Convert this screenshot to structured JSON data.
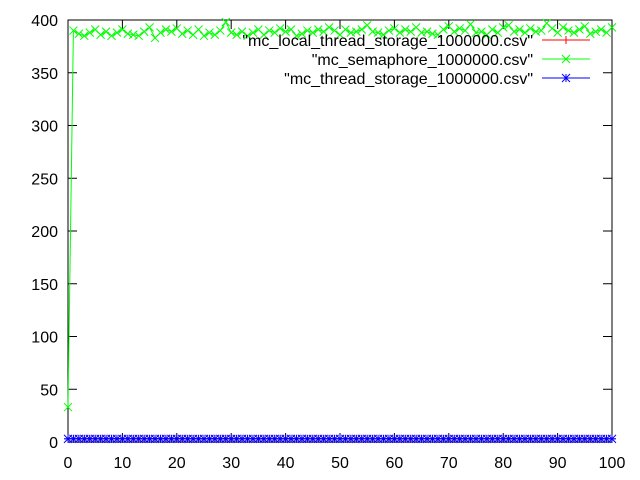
{
  "chart_data": {
    "type": "line",
    "title": "",
    "xlabel": "",
    "ylabel": "",
    "xlim": [
      0,
      100
    ],
    "ylim": [
      0,
      400
    ],
    "xticks": [
      0,
      10,
      20,
      30,
      40,
      50,
      60,
      70,
      80,
      90,
      100
    ],
    "yticks": [
      0,
      50,
      100,
      150,
      200,
      250,
      300,
      350,
      400
    ],
    "grid": false,
    "legend_position": "top-right",
    "series": [
      {
        "name": "\"mc_local_thread_storage_1000000.csv\"",
        "color": "#ff0000",
        "marker": "plus",
        "x": [
          0,
          1,
          2,
          3,
          4,
          5,
          6,
          7,
          8,
          9,
          10,
          11,
          12,
          13,
          14,
          15,
          16,
          17,
          18,
          19,
          20,
          21,
          22,
          23,
          24,
          25,
          26,
          27,
          28,
          29,
          30,
          31,
          32,
          33,
          34,
          35,
          36,
          37,
          38,
          39,
          40,
          41,
          42,
          43,
          44,
          45,
          46,
          47,
          48,
          49,
          50,
          51,
          52,
          53,
          54,
          55,
          56,
          57,
          58,
          59,
          60,
          61,
          62,
          63,
          64,
          65,
          66,
          67,
          68,
          69,
          70,
          71,
          72,
          73,
          74,
          75,
          76,
          77,
          78,
          79,
          80,
          81,
          82,
          83,
          84,
          85,
          86,
          87,
          88,
          89,
          90,
          91,
          92,
          93,
          94,
          95,
          96,
          97,
          98,
          99,
          100
        ],
        "y": [
          3,
          3,
          3,
          3,
          3,
          3,
          3,
          3,
          3,
          3,
          3,
          3,
          3,
          3,
          3,
          3,
          3,
          3,
          3,
          3,
          3,
          3,
          3,
          3,
          3,
          3,
          3,
          3,
          3,
          3,
          3,
          3,
          3,
          3,
          3,
          3,
          3,
          3,
          3,
          3,
          3,
          3,
          3,
          3,
          3,
          3,
          3,
          3,
          3,
          3,
          3,
          3,
          3,
          3,
          3,
          3,
          3,
          3,
          3,
          3,
          3,
          3,
          3,
          3,
          3,
          3,
          3,
          3,
          3,
          3,
          3,
          3,
          3,
          3,
          3,
          3,
          3,
          3,
          3,
          3,
          3,
          3,
          3,
          3,
          3,
          3,
          3,
          3,
          3,
          3,
          3,
          3,
          3,
          3,
          3,
          3,
          3,
          3,
          3,
          3,
          3
        ]
      },
      {
        "name": "\"mc_semaphore_1000000.csv\"",
        "color": "#00ff00",
        "marker": "cross",
        "x": [
          0,
          1,
          2,
          3,
          4,
          5,
          6,
          7,
          8,
          9,
          10,
          11,
          12,
          13,
          14,
          15,
          16,
          17,
          18,
          19,
          20,
          21,
          22,
          23,
          24,
          25,
          26,
          27,
          28,
          29,
          30,
          31,
          32,
          33,
          34,
          35,
          36,
          37,
          38,
          39,
          40,
          41,
          42,
          43,
          44,
          45,
          46,
          47,
          48,
          49,
          50,
          51,
          52,
          53,
          54,
          55,
          56,
          57,
          58,
          59,
          60,
          61,
          62,
          63,
          64,
          65,
          66,
          67,
          68,
          69,
          70,
          71,
          72,
          73,
          74,
          75,
          76,
          77,
          78,
          79,
          80,
          81,
          82,
          83,
          84,
          85,
          86,
          87,
          88,
          89,
          90,
          91,
          92,
          93,
          94,
          95,
          96,
          97,
          98,
          99,
          100
        ],
        "y": [
          33,
          390,
          387,
          385,
          388,
          391,
          386,
          389,
          385,
          388,
          391,
          387,
          386,
          385,
          389,
          393,
          383,
          388,
          391,
          389,
          392,
          387,
          390,
          386,
          391,
          385,
          388,
          386,
          390,
          398,
          388,
          386,
          389,
          385,
          388,
          391,
          386,
          390,
          388,
          392,
          389,
          391,
          385,
          387,
          390,
          388,
          391,
          389,
          393,
          390,
          386,
          391,
          388,
          389,
          391,
          395,
          389,
          388,
          386,
          390,
          392,
          388,
          391,
          389,
          393,
          388,
          389,
          387,
          386,
          391,
          394,
          389,
          392,
          390,
          396,
          388,
          389,
          386,
          391,
          388,
          393,
          395,
          389,
          391,
          388,
          392,
          389,
          390,
          397,
          392,
          388,
          393,
          390,
          388,
          391,
          394,
          387,
          389,
          391,
          388,
          393
        ]
      },
      {
        "name": "\"mc_thread_storage_1000000.csv\"",
        "color": "#0000ff",
        "marker": "star",
        "x": [
          0,
          1,
          2,
          3,
          4,
          5,
          6,
          7,
          8,
          9,
          10,
          11,
          12,
          13,
          14,
          15,
          16,
          17,
          18,
          19,
          20,
          21,
          22,
          23,
          24,
          25,
          26,
          27,
          28,
          29,
          30,
          31,
          32,
          33,
          34,
          35,
          36,
          37,
          38,
          39,
          40,
          41,
          42,
          43,
          44,
          45,
          46,
          47,
          48,
          49,
          50,
          51,
          52,
          53,
          54,
          55,
          56,
          57,
          58,
          59,
          60,
          61,
          62,
          63,
          64,
          65,
          66,
          67,
          68,
          69,
          70,
          71,
          72,
          73,
          74,
          75,
          76,
          77,
          78,
          79,
          80,
          81,
          82,
          83,
          84,
          85,
          86,
          87,
          88,
          89,
          90,
          91,
          92,
          93,
          94,
          95,
          96,
          97,
          98,
          99,
          100
        ],
        "y": [
          3,
          3,
          3,
          3,
          3,
          3,
          3,
          3,
          3,
          3,
          3,
          3,
          3,
          3,
          3,
          3,
          3,
          3,
          3,
          3,
          3,
          3,
          3,
          3,
          3,
          3,
          3,
          3,
          3,
          3,
          3,
          3,
          3,
          3,
          3,
          3,
          3,
          3,
          3,
          3,
          3,
          3,
          3,
          3,
          3,
          3,
          3,
          3,
          3,
          3,
          3,
          3,
          3,
          3,
          3,
          3,
          3,
          3,
          3,
          3,
          3,
          3,
          3,
          3,
          3,
          3,
          3,
          3,
          3,
          3,
          3,
          3,
          3,
          3,
          3,
          3,
          3,
          3,
          3,
          3,
          3,
          3,
          3,
          3,
          3,
          3,
          3,
          3,
          3,
          3,
          3,
          3,
          3,
          3,
          3,
          3,
          3,
          3,
          3,
          3,
          3
        ]
      }
    ]
  }
}
